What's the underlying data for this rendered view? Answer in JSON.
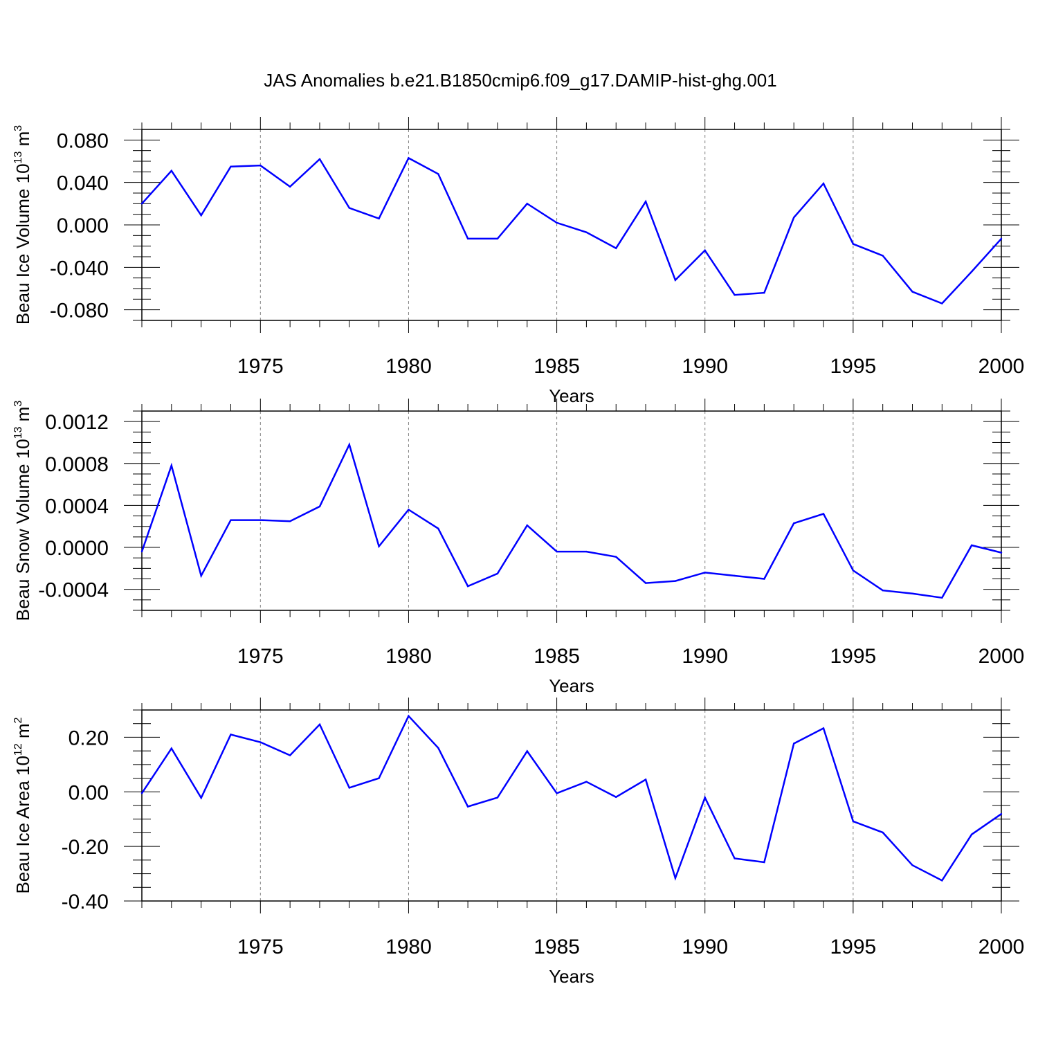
{
  "title": "JAS Anomalies b.e21.B1850cmip6.f09_g17.DAMIP-hist-ghg.001",
  "colors": {
    "line": "#0000ff",
    "axis": "#000000",
    "grid": "#808080"
  },
  "chart_data": [
    {
      "type": "line",
      "xlabel": "Years",
      "ylabel": {
        "text": "Beau Ice Volume 10",
        "sup": "13",
        "unit": " m",
        "unit_sup": "3"
      },
      "xlim": [
        1971,
        2000
      ],
      "ylim": [
        -0.09,
        0.09
      ],
      "xticks": [
        1975,
        1980,
        1985,
        1990,
        1995,
        2000
      ],
      "xtick_labels": [
        "1975",
        "1980",
        "1985",
        "1990",
        "1995",
        "2000"
      ],
      "yticks": [
        0.08,
        0.04,
        0.0,
        -0.04,
        -0.08
      ],
      "ytick_labels": [
        "0.080",
        "0.040",
        "0.000",
        "-0.040",
        "-0.080"
      ],
      "grid": "vertical dashed at major x ticks",
      "x": [
        1971,
        1972,
        1973,
        1974,
        1975,
        1976,
        1977,
        1978,
        1979,
        1980,
        1981,
        1982,
        1983,
        1984,
        1985,
        1986,
        1987,
        1988,
        1989,
        1990,
        1991,
        1992,
        1993,
        1994,
        1995,
        1996,
        1997,
        1998,
        1999,
        2000
      ],
      "y": [
        0.02,
        0.051,
        0.009,
        0.055,
        0.056,
        0.036,
        0.062,
        0.016,
        0.006,
        0.063,
        0.048,
        -0.013,
        -0.013,
        0.02,
        0.002,
        -0.007,
        -0.022,
        0.022,
        -0.052,
        -0.024,
        -0.066,
        -0.064,
        0.007,
        0.039,
        -0.018,
        -0.029,
        -0.063,
        -0.074,
        -0.044,
        -0.013
      ]
    },
    {
      "type": "line",
      "xlabel": "Years",
      "ylabel": {
        "text": "Beau Snow Volume 10",
        "sup": "13",
        "unit": " m",
        "unit_sup": "3"
      },
      "xlim": [
        1971,
        2000
      ],
      "ylim": [
        -0.0006,
        0.0013
      ],
      "xticks": [
        1975,
        1980,
        1985,
        1990,
        1995,
        2000
      ],
      "xtick_labels": [
        "1975",
        "1980",
        "1985",
        "1990",
        "1995",
        "2000"
      ],
      "yticks": [
        0.0012,
        0.0008,
        0.0004,
        0.0,
        -0.0004
      ],
      "ytick_labels": [
        "0.0012",
        "0.0008",
        "0.0004",
        "0.0000",
        "-0.0004"
      ],
      "grid": "vertical dashed at major x ticks",
      "x": [
        1971,
        1972,
        1973,
        1974,
        1975,
        1976,
        1977,
        1978,
        1979,
        1980,
        1981,
        1982,
        1983,
        1984,
        1985,
        1986,
        1987,
        1988,
        1989,
        1990,
        1991,
        1992,
        1993,
        1994,
        1995,
        1996,
        1997,
        1998,
        1999,
        2000
      ],
      "y": [
        -4e-05,
        0.00078,
        -0.00027,
        0.00026,
        0.00026,
        0.00025,
        0.00039,
        0.00098,
        1e-05,
        0.00036,
        0.00018,
        -0.00037,
        -0.00025,
        0.00021,
        -4e-05,
        -4e-05,
        -9e-05,
        -0.00034,
        -0.00032,
        -0.00024,
        -0.00027,
        -0.0003,
        0.00023,
        0.00032,
        -0.00022,
        -0.00041,
        -0.00044,
        -0.00048,
        2e-05,
        -5e-05
      ]
    },
    {
      "type": "line",
      "xlabel": "Years",
      "ylabel": {
        "text": "Beau Ice Area 10",
        "sup": "12",
        "unit": " m",
        "unit_sup": "2"
      },
      "xlim": [
        1971,
        2000
      ],
      "ylim": [
        -0.4,
        0.3
      ],
      "xticks": [
        1975,
        1980,
        1985,
        1990,
        1995,
        2000
      ],
      "xtick_labels": [
        "1975",
        "1980",
        "1985",
        "1990",
        "1995",
        "2000"
      ],
      "yticks": [
        0.2,
        0.0,
        -0.2,
        -0.4
      ],
      "ytick_labels": [
        "0.20",
        "0.00",
        "-0.20",
        "-0.40"
      ],
      "grid": "vertical dashed at major x ticks",
      "x": [
        1971,
        1972,
        1973,
        1974,
        1975,
        1976,
        1977,
        1978,
        1979,
        1980,
        1981,
        1982,
        1983,
        1984,
        1985,
        1986,
        1987,
        1988,
        1989,
        1990,
        1991,
        1992,
        1993,
        1994,
        1995,
        1996,
        1997,
        1998,
        1999,
        2000
      ],
      "y": [
        -0.005,
        0.159,
        -0.022,
        0.21,
        0.182,
        0.134,
        0.247,
        0.015,
        0.05,
        0.278,
        0.161,
        -0.054,
        -0.021,
        0.149,
        -0.005,
        0.037,
        -0.019,
        0.045,
        -0.316,
        -0.021,
        -0.244,
        -0.258,
        0.177,
        0.233,
        -0.108,
        -0.149,
        -0.269,
        -0.325,
        -0.156,
        -0.081
      ]
    }
  ]
}
